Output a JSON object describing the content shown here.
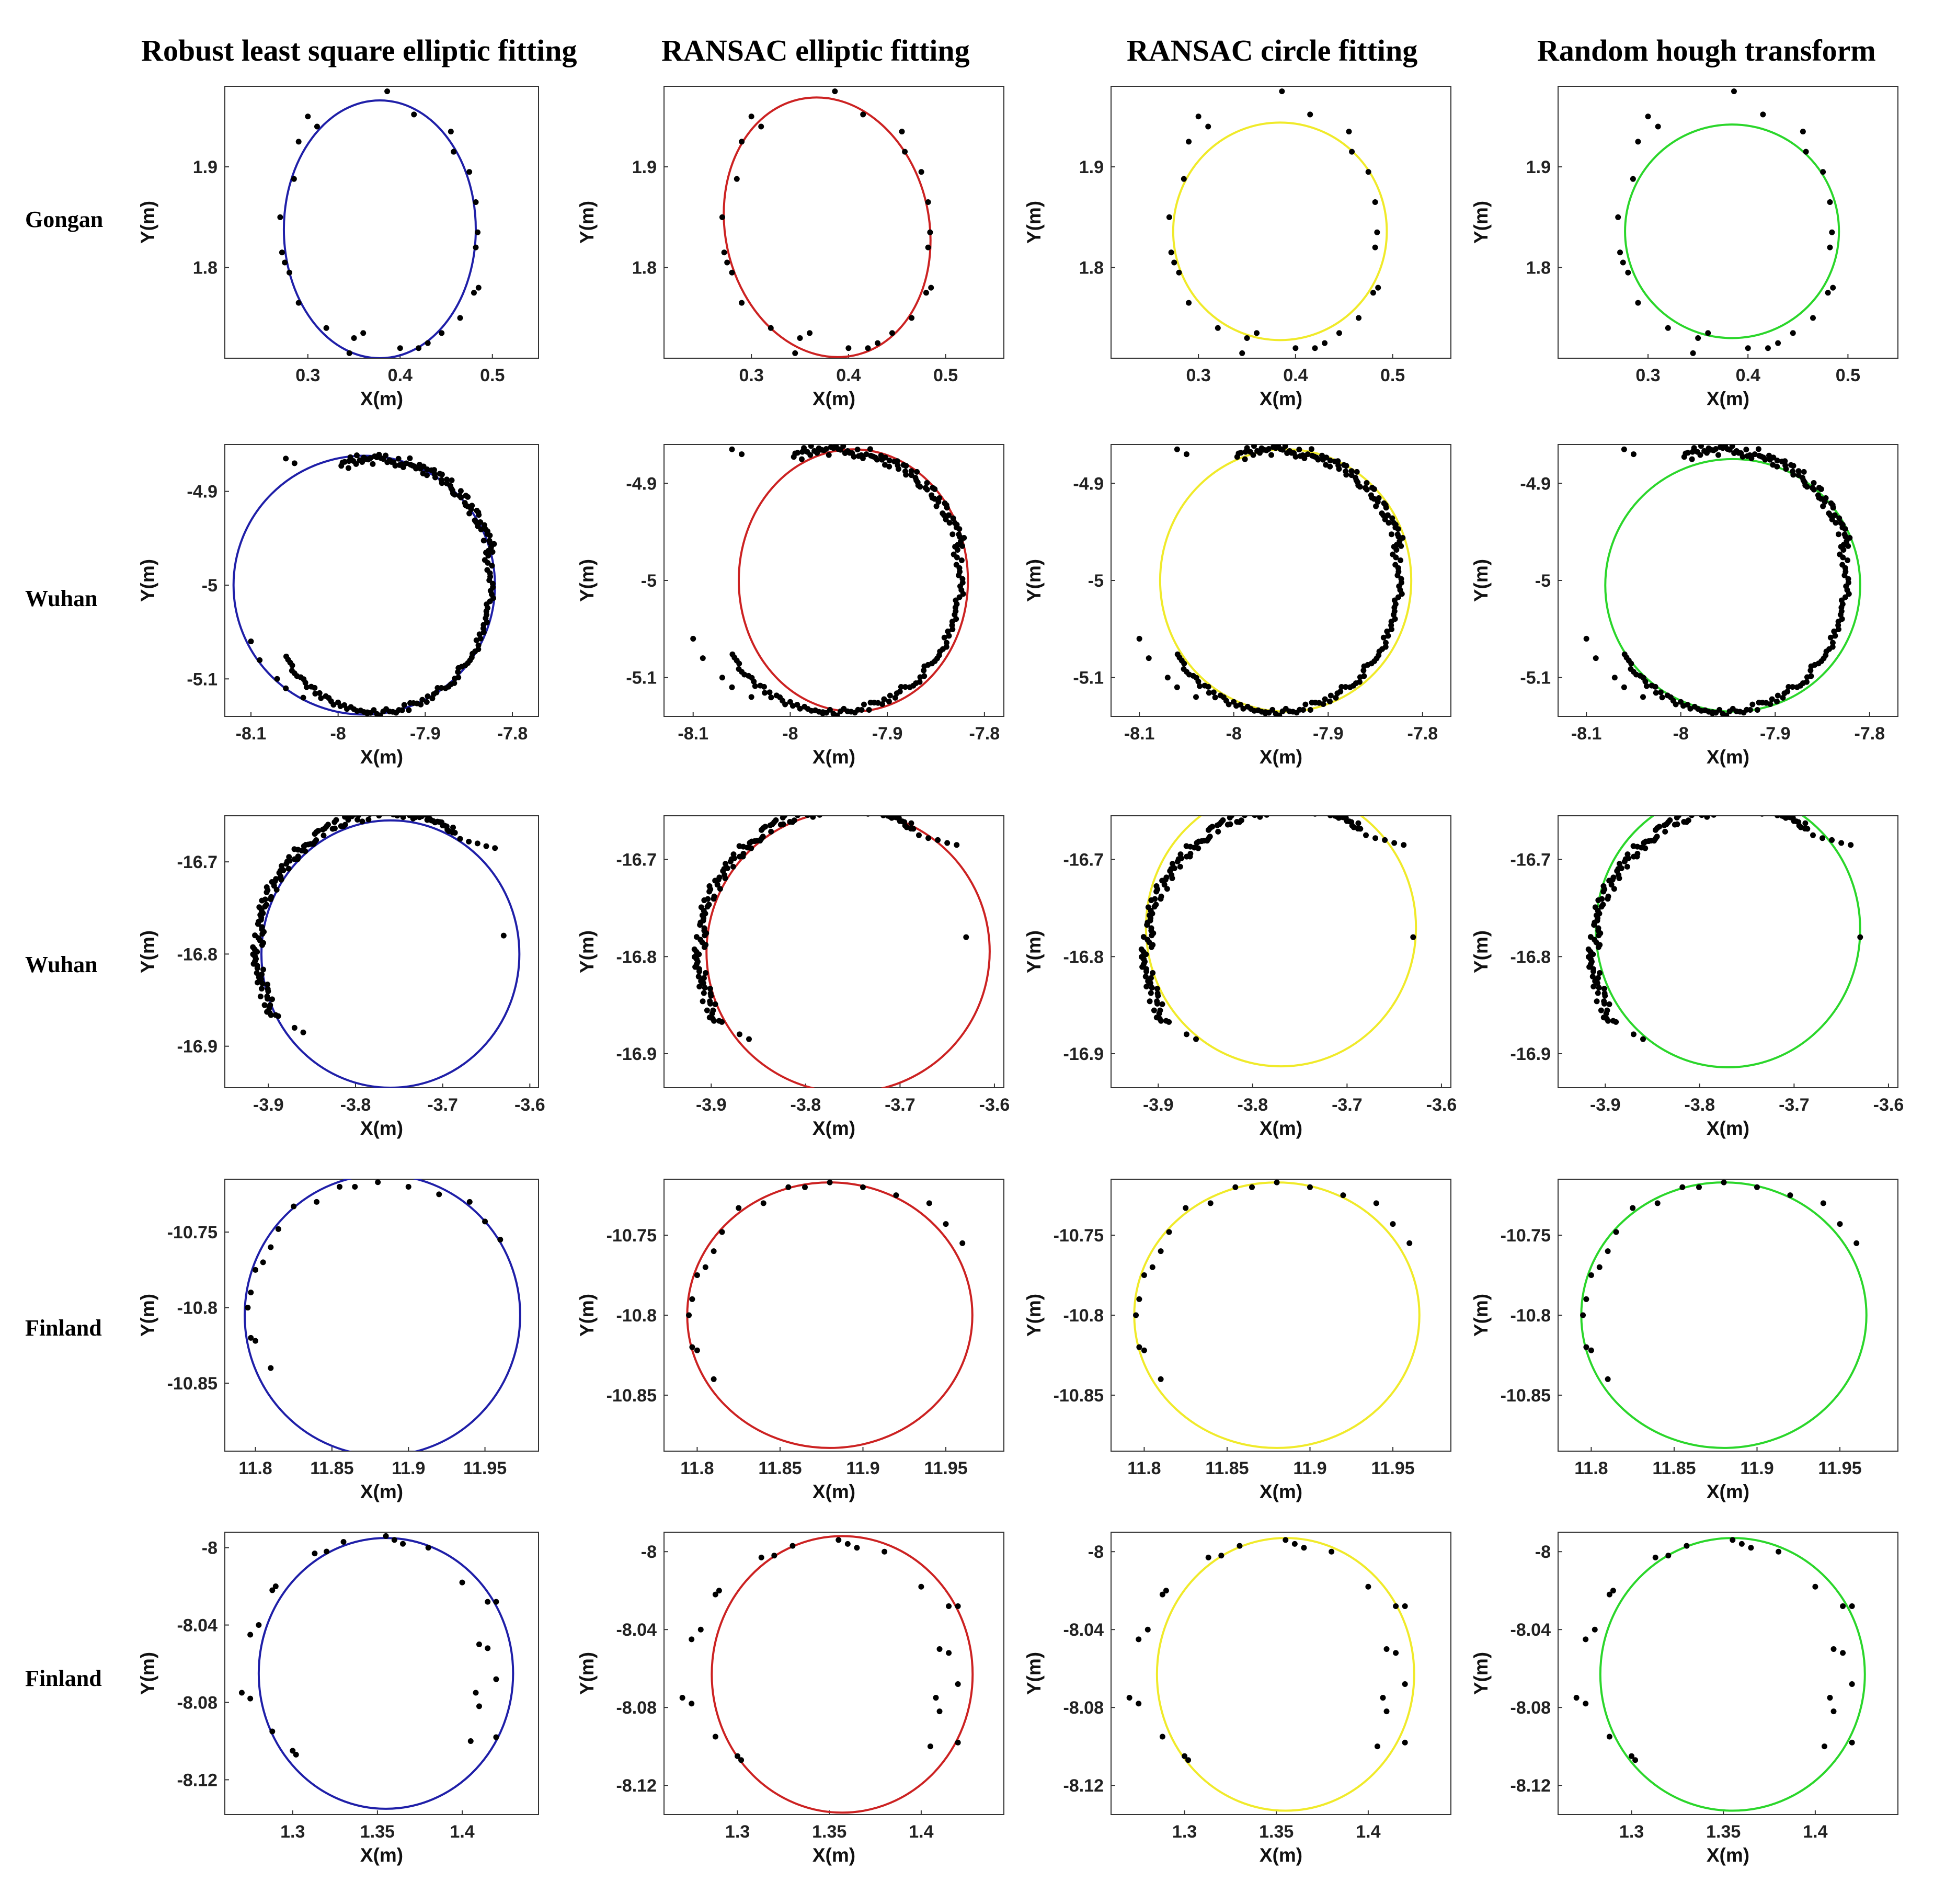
{
  "figure": {
    "columns": [
      "Robust least square elliptic fitting",
      "RANSAC elliptic fitting",
      "RANSAC circle fitting",
      "Random hough transform"
    ],
    "rows": [
      "Gongan",
      "Wuhan",
      "Wuhan",
      "Finland",
      "Finland"
    ],
    "fit_colors": [
      "#1f1fa8",
      "#cc2222",
      "#f0ea2a",
      "#2bd62b"
    ],
    "point_color": "#000000",
    "xlabel": "X(m)",
    "ylabel": "Y(m)"
  },
  "chart_data": [
    {
      "type": "scatter",
      "name": "Gongan",
      "title": "",
      "xlabel": "X(m)",
      "ylabel": "Y(m)",
      "xticks": [
        "0.3",
        "0.4",
        "0.5"
      ],
      "yticks": [
        "1.9",
        "1.8"
      ],
      "xlim": [
        0.21,
        0.55
      ],
      "ylim": [
        1.71,
        1.98
      ],
      "points": [
        [
          0.386,
          1.975
        ],
        [
          0.415,
          1.952
        ],
        [
          0.455,
          1.935
        ],
        [
          0.458,
          1.915
        ],
        [
          0.475,
          1.895
        ],
        [
          0.482,
          1.865
        ],
        [
          0.484,
          1.835
        ],
        [
          0.482,
          1.82
        ],
        [
          0.485,
          1.78
        ],
        [
          0.48,
          1.775
        ],
        [
          0.465,
          1.75
        ],
        [
          0.445,
          1.735
        ],
        [
          0.43,
          1.725
        ],
        [
          0.42,
          1.72
        ],
        [
          0.4,
          1.72
        ],
        [
          0.36,
          1.735
        ],
        [
          0.35,
          1.73
        ],
        [
          0.345,
          1.715
        ],
        [
          0.32,
          1.74
        ],
        [
          0.29,
          1.765
        ],
        [
          0.28,
          1.795
        ],
        [
          0.275,
          1.805
        ],
        [
          0.272,
          1.815
        ],
        [
          0.27,
          1.85
        ],
        [
          0.285,
          1.888
        ],
        [
          0.29,
          1.925
        ],
        [
          0.31,
          1.94
        ],
        [
          0.3,
          1.95
        ]
      ],
      "fits": [
        {
          "method": "Robust least square elliptic fitting",
          "cx": 0.378,
          "cy": 1.838,
          "a": 0.104,
          "b": 0.128,
          "xlim": [
            0.21,
            0.55
          ],
          "ylim": [
            1.71,
            1.98
          ]
        },
        {
          "method": "RANSAC elliptic fitting",
          "cx": 0.378,
          "cy": 1.84,
          "a": 0.105,
          "b": 0.13,
          "angle": -12,
          "xlim": [
            0.21,
            0.56
          ],
          "ylim": [
            1.71,
            1.98
          ]
        },
        {
          "method": "RANSAC circle fitting",
          "cx": 0.384,
          "cy": 1.836,
          "a": 0.11,
          "b": 0.108,
          "xlim": [
            0.21,
            0.56
          ],
          "ylim": [
            1.71,
            1.98
          ]
        },
        {
          "method": "Random hough transform",
          "cx": 0.384,
          "cy": 1.836,
          "a": 0.107,
          "b": 0.106,
          "xlim": [
            0.21,
            0.55
          ],
          "ylim": [
            1.71,
            1.98
          ]
        }
      ]
    },
    {
      "type": "scatter",
      "name": "Wuhan",
      "title": "",
      "xlabel": "X(m)",
      "ylabel": "Y(m)",
      "xticks": [
        "-8.1",
        "-8",
        "-7.9",
        "-7.8"
      ],
      "yticks": [
        "-4.9",
        "-5",
        "-5.1"
      ],
      "xlim": [
        -8.13,
        -7.77
      ],
      "ylim": [
        -5.14,
        -4.86
      ],
      "arcs": [
        {
          "from_deg": 15,
          "to_deg": 108,
          "cx": -7.955,
          "cy": -5.0,
          "rx": 0.135,
          "ry": 0.135,
          "jitter": 0.006,
          "count": 90
        },
        {
          "from_deg": -95,
          "to_deg": 15,
          "cx": -7.955,
          "cy": -5.0,
          "rx": 0.13,
          "ry": 0.135,
          "jitter": 0.004,
          "count": 70
        },
        {
          "from_deg": -145,
          "to_deg": -95,
          "cx": -7.955,
          "cy": -5.0,
          "rx": 0.13,
          "ry": 0.135,
          "jitter": 0.003,
          "count": 30
        }
      ],
      "points": [
        [
          -8.06,
          -4.865
        ],
        [
          -8.05,
          -4.87
        ],
        [
          -8.1,
          -5.06
        ],
        [
          -8.09,
          -5.08
        ],
        [
          -8.07,
          -5.1
        ],
        [
          -8.06,
          -5.11
        ],
        [
          -8.04,
          -5.12
        ]
      ],
      "fits": [
        {
          "method": "Robust least square elliptic fitting",
          "cx": -7.97,
          "cy": -5.0,
          "a": 0.15,
          "b": 0.138,
          "xlim": [
            -8.13,
            -7.77
          ],
          "ylim": [
            -5.14,
            -4.85
          ]
        },
        {
          "method": "RANSAC elliptic fitting",
          "cx": -7.935,
          "cy": -5.0,
          "a": 0.118,
          "b": 0.135,
          "xlim": [
            -8.13,
            -7.78
          ],
          "ylim": [
            -5.14,
            -4.86
          ]
        },
        {
          "method": "RANSAC circle fitting",
          "cx": -7.945,
          "cy": -5.0,
          "a": 0.133,
          "b": 0.135,
          "xlim": [
            -8.13,
            -7.77
          ],
          "ylim": [
            -5.14,
            -4.86
          ]
        },
        {
          "method": "Random hough transform",
          "cx": -7.945,
          "cy": -5.005,
          "a": 0.135,
          "b": 0.13,
          "xlim": [
            -8.13,
            -7.77
          ],
          "ylim": [
            -5.14,
            -4.86
          ]
        }
      ]
    },
    {
      "type": "scatter",
      "name": "Wuhan",
      "title": "",
      "xlabel": "X(m)",
      "ylabel": "Y(m)",
      "xticks": [
        "-3.9",
        "-3.8",
        "-3.7",
        "-3.6"
      ],
      "yticks": [
        "-16.7",
        "-16.8",
        "-16.9"
      ],
      "xlim": [
        -3.95,
        -3.59
      ],
      "ylim": [
        -16.935,
        -16.655
      ],
      "arcs": [
        {
          "from_deg": 60,
          "to_deg": 95,
          "cx": -3.76,
          "cy": -16.795,
          "rx": 0.15,
          "ry": 0.148,
          "jitter": 0.004,
          "count": 40
        },
        {
          "from_deg": 95,
          "to_deg": 210,
          "cx": -3.76,
          "cy": -16.795,
          "rx": 0.152,
          "ry": 0.148,
          "jitter": 0.006,
          "count": 120
        }
      ],
      "points": [
        [
          -3.68,
          -16.675
        ],
        [
          -3.67,
          -16.678
        ],
        [
          -3.66,
          -16.68
        ],
        [
          -3.65,
          -16.683
        ],
        [
          -3.64,
          -16.685
        ],
        [
          -3.63,
          -16.78
        ],
        [
          -3.87,
          -16.88
        ],
        [
          -3.86,
          -16.885
        ]
      ],
      "fits": [
        {
          "method": "Robust least square elliptic fitting",
          "cx": -3.76,
          "cy": -16.8,
          "a": 0.148,
          "b": 0.145,
          "xlim": [
            -3.95,
            -3.59
          ],
          "ylim": [
            -16.945,
            -16.65
          ]
        },
        {
          "method": "RANSAC elliptic fitting",
          "cx": -3.755,
          "cy": -16.795,
          "a": 0.15,
          "b": 0.145,
          "angle": -10,
          "xlim": [
            -3.95,
            -3.59
          ],
          "ylim": [
            -16.935,
            -16.655
          ]
        },
        {
          "method": "RANSAC circle fitting",
          "cx": -3.77,
          "cy": -16.77,
          "a": 0.143,
          "b": 0.143,
          "xlim": [
            -3.95,
            -3.59
          ],
          "ylim": [
            -16.935,
            -16.655
          ]
        },
        {
          "method": "Random hough transform",
          "cx": -3.77,
          "cy": -16.772,
          "a": 0.14,
          "b": 0.142,
          "xlim": [
            -3.95,
            -3.59
          ],
          "ylim": [
            -16.935,
            -16.655
          ]
        }
      ]
    },
    {
      "type": "scatter",
      "name": "Finland",
      "title": "",
      "xlabel": "X(m)",
      "ylabel": "Y(m)",
      "xticks": [
        "11.8",
        "11.85",
        "11.9",
        "11.95"
      ],
      "yticks": [
        "-10.75",
        "-10.8",
        "-10.85"
      ],
      "xlim": [
        11.78,
        11.985
      ],
      "ylim": [
        -10.895,
        -10.715
      ],
      "points": [
        [
          11.88,
          -10.717
        ],
        [
          11.865,
          -10.72
        ],
        [
          11.855,
          -10.72
        ],
        [
          11.9,
          -10.72
        ],
        [
          11.92,
          -10.725
        ],
        [
          11.94,
          -10.73
        ],
        [
          11.95,
          -10.743
        ],
        [
          11.96,
          -10.755
        ],
        [
          11.84,
          -10.73
        ],
        [
          11.825,
          -10.733
        ],
        [
          11.815,
          -10.748
        ],
        [
          11.81,
          -10.76
        ],
        [
          11.805,
          -10.77
        ],
        [
          11.8,
          -10.775
        ],
        [
          11.797,
          -10.79
        ],
        [
          11.795,
          -10.8
        ],
        [
          11.797,
          -10.82
        ],
        [
          11.8,
          -10.822
        ],
        [
          11.81,
          -10.84
        ]
      ],
      "fits": [
        {
          "method": "Robust least square elliptic fitting",
          "cx": 11.883,
          "cy": -10.805,
          "a": 0.09,
          "b": 0.093,
          "xlim": [
            11.78,
            11.985
          ],
          "ylim": [
            -10.895,
            -10.715
          ]
        },
        {
          "method": "RANSAC elliptic fitting",
          "cx": 11.88,
          "cy": -10.8,
          "a": 0.086,
          "b": 0.083,
          "xlim": [
            11.78,
            11.985
          ],
          "ylim": [
            -10.885,
            -10.715
          ]
        },
        {
          "method": "RANSAC circle fitting",
          "cx": 11.88,
          "cy": -10.8,
          "a": 0.086,
          "b": 0.083,
          "xlim": [
            11.78,
            11.985
          ],
          "ylim": [
            -10.885,
            -10.715
          ]
        },
        {
          "method": "Random hough transform",
          "cx": 11.88,
          "cy": -10.8,
          "a": 0.086,
          "b": 0.083,
          "xlim": [
            11.78,
            11.985
          ],
          "ylim": [
            -10.885,
            -10.715
          ]
        }
      ]
    },
    {
      "type": "scatter",
      "name": "Finland",
      "title": "",
      "xlabel": "X(m)",
      "ylabel": "Y(m)",
      "xticks": [
        "1.3",
        "1.35",
        "1.4"
      ],
      "yticks": [
        "-8",
        "-8.04",
        "-8.08",
        "-8.12"
      ],
      "xlim": [
        1.26,
        1.445
      ],
      "ylim": [
        -8.138,
        -7.992
      ],
      "points": [
        [
          1.355,
          -7.994
        ],
        [
          1.36,
          -7.996
        ],
        [
          1.365,
          -7.998
        ],
        [
          1.33,
          -7.997
        ],
        [
          1.32,
          -8.002
        ],
        [
          1.313,
          -8.003
        ],
        [
          1.38,
          -8.0
        ],
        [
          1.4,
          -8.018
        ],
        [
          1.415,
          -8.028
        ],
        [
          1.42,
          -8.028
        ],
        [
          1.29,
          -8.02
        ],
        [
          1.288,
          -8.022
        ],
        [
          1.28,
          -8.04
        ],
        [
          1.275,
          -8.045
        ],
        [
          1.27,
          -8.075
        ],
        [
          1.275,
          -8.078
        ],
        [
          1.288,
          -8.095
        ],
        [
          1.3,
          -8.105
        ],
        [
          1.302,
          -8.107
        ],
        [
          1.41,
          -8.05
        ],
        [
          1.415,
          -8.052
        ],
        [
          1.42,
          -8.068
        ],
        [
          1.408,
          -8.075
        ],
        [
          1.41,
          -8.082
        ],
        [
          1.405,
          -8.1
        ],
        [
          1.42,
          -8.098
        ]
      ],
      "fits": [
        {
          "method": "Robust least square elliptic fitting",
          "cx": 1.355,
          "cy": -8.065,
          "a": 0.075,
          "b": 0.07,
          "xlim": [
            1.26,
            1.445
          ],
          "ylim": [
            -8.138,
            -7.992
          ]
        },
        {
          "method": "RANSAC elliptic fitting",
          "cx": 1.357,
          "cy": -8.063,
          "a": 0.071,
          "b": 0.071,
          "xlim": [
            1.26,
            1.445
          ],
          "ylim": [
            -8.135,
            -7.99
          ]
        },
        {
          "method": "RANSAC circle fitting",
          "cx": 1.355,
          "cy": -8.063,
          "a": 0.07,
          "b": 0.07,
          "xlim": [
            1.26,
            1.445
          ],
          "ylim": [
            -8.135,
            -7.99
          ]
        },
        {
          "method": "Random hough transform",
          "cx": 1.355,
          "cy": -8.063,
          "a": 0.072,
          "b": 0.07,
          "xlim": [
            1.26,
            1.445
          ],
          "ylim": [
            -8.135,
            -7.99
          ]
        }
      ]
    }
  ]
}
